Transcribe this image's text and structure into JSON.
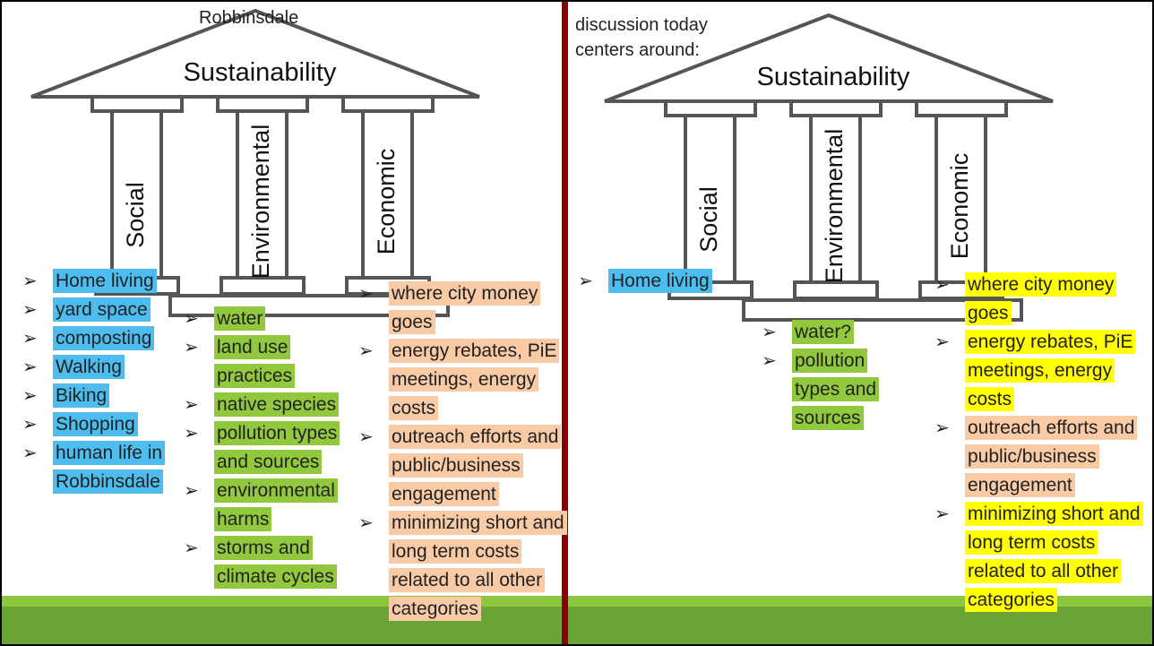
{
  "panels": [
    {
      "caption": "Robbinsdale",
      "temple": {
        "roof": "Sustainability",
        "pillars": [
          "Social",
          "Environmental",
          "Economic"
        ]
      },
      "lists": [
        {
          "items": [
            {
              "text": "Home living",
              "highlight": "#4dbdf0"
            },
            {
              "text": "yard space",
              "highlight": "#4dbdf0"
            },
            {
              "text": "composting",
              "highlight": "#4dbdf0"
            },
            {
              "text": "Walking",
              "highlight": "#4dbdf0"
            },
            {
              "text": "Biking",
              "highlight": "#4dbdf0"
            },
            {
              "text": "Shopping",
              "highlight": "#4dbdf0"
            },
            {
              "text": "human life in Robbinsdale",
              "highlight": "#4dbdf0"
            }
          ]
        },
        {
          "items": [
            {
              "text": "water",
              "highlight": "#92c83e"
            },
            {
              "text": "land use practices",
              "highlight": "#92c83e"
            },
            {
              "text": "native species",
              "highlight": "#92c83e"
            },
            {
              "text": "pollution types and sources",
              "highlight": "#92c83e"
            },
            {
              "text": "environmental harms",
              "highlight": "#92c83e"
            },
            {
              "text": "storms and climate cycles",
              "highlight": "#92c83e"
            }
          ]
        },
        {
          "items": [
            {
              "text": "where city money goes",
              "highlight": "#f8cba6"
            },
            {
              "text": "energy rebates, PiE meetings, energy costs",
              "highlight": "#f8cba6"
            },
            {
              "text": "outreach efforts and public/business engagement",
              "highlight": "#f8cba6"
            },
            {
              "text": "minimizing short and long term costs related to all other categories",
              "highlight": "#f8cba6"
            }
          ]
        }
      ]
    },
    {
      "caption": "discussion today centers around:",
      "temple": {
        "roof": "Sustainability",
        "pillars": [
          "Social",
          "Environmental",
          "Economic"
        ]
      },
      "lists": [
        {
          "items": [
            {
              "text": "Home living",
              "highlight": "#4dbdf0"
            }
          ]
        },
        {
          "items": [
            {
              "text": "water?",
              "highlight": "#92c83e"
            },
            {
              "text": "pollution types and sources",
              "highlight": "#92c83e"
            }
          ]
        },
        {
          "items": [
            {
              "text": "where city money goes",
              "highlight": "#ffff00"
            },
            {
              "text": "energy rebates, PiE meetings, energy costs",
              "highlight": "#ffff00"
            },
            {
              "text": "outreach efforts and public/business engagement",
              "highlight": "#f8cba6"
            },
            {
              "text": "minimizing short and long term costs related to all other categories",
              "highlight": "#ffff00"
            }
          ]
        }
      ]
    }
  ]
}
